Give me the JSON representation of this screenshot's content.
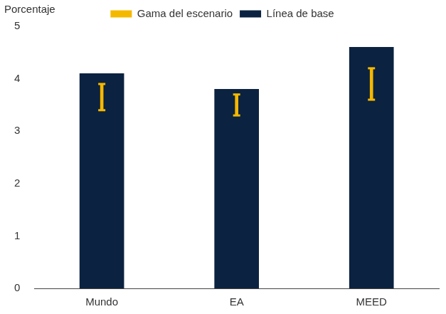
{
  "chart_data": {
    "type": "bar",
    "y_label": "Porcentaje",
    "categories": [
      "Mundo",
      "EA",
      "MEED"
    ],
    "series": [
      {
        "name": "Línea de base",
        "color": "#0b2240",
        "values": [
          4.1,
          3.8,
          4.6
        ]
      },
      {
        "name": "Gama del escenario",
        "color": "#f5b800",
        "type": "range",
        "low": [
          3.4,
          3.3,
          3.6
        ],
        "high": [
          3.9,
          3.7,
          4.2
        ]
      }
    ],
    "ylim": [
      0,
      5
    ],
    "yticks": [
      0,
      1,
      2,
      3,
      4,
      5
    ],
    "grid": false,
    "legend": "top"
  }
}
